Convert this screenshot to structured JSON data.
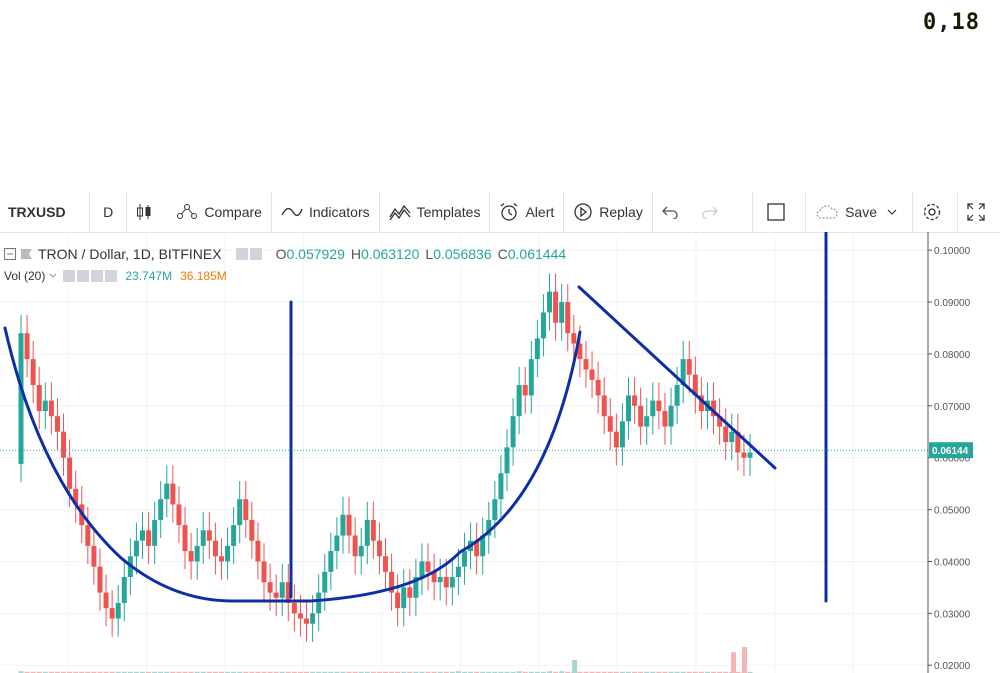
{
  "corner_value": "0,18",
  "toolbar": {
    "symbol": "TRXUSD",
    "interval": "D",
    "compare": "Compare",
    "indicators": "Indicators",
    "templates": "Templates",
    "alert": "Alert",
    "replay": "Replay",
    "save": "Save"
  },
  "legend": {
    "title": "TRON / Dollar, 1D, BITFINEX",
    "o_label": "O",
    "o_value": "0.057929",
    "h_label": "H",
    "h_value": "0.063120",
    "l_label": "L",
    "l_value": "0.056836",
    "c_label": "C",
    "c_value": "0.061444"
  },
  "volume": {
    "label": "Vol (20)",
    "value1": "23.747M",
    "value2": "36.185M"
  },
  "chart_data": {
    "type": "candlestick",
    "y_ticks": [
      "0.10000",
      "0.09000",
      "0.08000",
      "0.07000",
      "0.06000",
      "0.05000",
      "0.04000",
      "0.03000",
      "0.02000"
    ],
    "y_tick_values": [
      0.1,
      0.09,
      0.08,
      0.07,
      0.06,
      0.05,
      0.04,
      0.03,
      0.02
    ],
    "ylim": [
      0.0185,
      0.1035
    ],
    "last_price_label": "0.06144",
    "last_price": 0.06144,
    "grid": true,
    "colors": {
      "up": "#26a69a",
      "down": "#ef5350",
      "drawing": "#0d2fa6",
      "axis_text": "#555555",
      "price_tag": "#26a69a"
    },
    "closes": [
      0.084,
      0.079,
      0.074,
      0.069,
      0.071,
      0.068,
      0.065,
      0.06,
      0.054,
      0.051,
      0.047,
      0.043,
      0.039,
      0.034,
      0.031,
      0.029,
      0.032,
      0.037,
      0.041,
      0.044,
      0.046,
      0.043,
      0.048,
      0.052,
      0.055,
      0.051,
      0.047,
      0.042,
      0.04,
      0.043,
      0.046,
      0.044,
      0.041,
      0.04,
      0.043,
      0.047,
      0.052,
      0.048,
      0.044,
      0.04,
      0.036,
      0.034,
      0.033,
      0.036,
      0.032,
      0.03,
      0.029,
      0.028,
      0.03,
      0.034,
      0.038,
      0.042,
      0.045,
      0.049,
      0.045,
      0.041,
      0.043,
      0.048,
      0.044,
      0.041,
      0.038,
      0.034,
      0.031,
      0.035,
      0.033,
      0.037,
      0.04,
      0.038,
      0.036,
      0.037,
      0.035,
      0.037,
      0.039,
      0.042,
      0.044,
      0.041,
      0.045,
      0.048,
      0.052,
      0.057,
      0.062,
      0.068,
      0.074,
      0.072,
      0.079,
      0.083,
      0.088,
      0.092,
      0.086,
      0.09,
      0.084,
      0.082,
      0.079,
      0.077,
      0.075,
      0.072,
      0.068,
      0.065,
      0.062,
      0.067,
      0.072,
      0.07,
      0.066,
      0.068,
      0.071,
      0.069,
      0.066,
      0.07,
      0.074,
      0.079,
      0.076,
      0.072,
      0.069,
      0.071,
      0.068,
      0.066,
      0.063,
      0.065,
      0.061,
      0.06,
      0.061
    ],
    "volumes": [
      0.3,
      0.2,
      0.2,
      0.2,
      0.2,
      0.2,
      0.2,
      0.2,
      0.2,
      0.2,
      0.2,
      0.2,
      0.2,
      0.2,
      0.2,
      0.2,
      0.2,
      0.2,
      0.2,
      0.2,
      0.2,
      0.2,
      0.2,
      0.2,
      0.2,
      0.2,
      0.2,
      0.2,
      0.2,
      0.2,
      0.2,
      0.2,
      0.2,
      0.2,
      0.2,
      0.2,
      0.2,
      0.2,
      0.2,
      0.2,
      0.2,
      0.2,
      0.2,
      0.2,
      0.2,
      0.2,
      0.2,
      0.2,
      0.2,
      0.2,
      0.2,
      0.2,
      0.2,
      0.2,
      0.2,
      0.2,
      0.2,
      0.2,
      0.2,
      0.2,
      0.2,
      0.2,
      0.2,
      0.2,
      0.2,
      0.2,
      0.2,
      0.2,
      0.2,
      0.2,
      0.2,
      0.2,
      0.3,
      0.2,
      0.2,
      0.2,
      0.2,
      0.2,
      0.2,
      0.2,
      0.2,
      0.2,
      0.3,
      0.2,
      0.2,
      0.2,
      0.2,
      0.3,
      0.2,
      0.3,
      0.2,
      0.2,
      0.2,
      0.2,
      0.2,
      0.2,
      0.2,
      0.2,
      0.2,
      0.2,
      0.2,
      0.2,
      0.2,
      0.2,
      0.2,
      0.2,
      0.2,
      0.2,
      0.2,
      0.2,
      0.2,
      0.2,
      0.2,
      0.2,
      0.2,
      0.2,
      0.2,
      0.2,
      0.2,
      0.2,
      0.2
    ],
    "volume_spikes": [
      {
        "index": 101,
        "value": 1.0,
        "up": true
      },
      {
        "index": 130,
        "value": 1.6,
        "up": false
      },
      {
        "index": 132,
        "value": 2.0,
        "up": false
      }
    ]
  }
}
